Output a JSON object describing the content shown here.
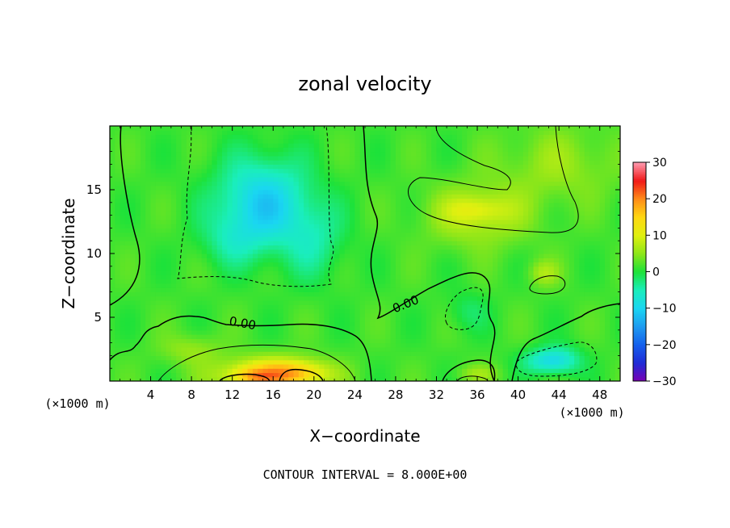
{
  "chart_data": {
    "type": "heatmap",
    "title": "zonal velocity",
    "xlabel": "X−coordinate",
    "ylabel": "Z−coordinate",
    "x_unit_left": "(×1000 m)",
    "x_unit_right": "(×1000 m)",
    "xlim": [
      0,
      50
    ],
    "ylim": [
      0,
      20
    ],
    "x_ticks": [
      4,
      8,
      12,
      16,
      20,
      24,
      28,
      32,
      36,
      40,
      44,
      48
    ],
    "y_ticks": [
      5,
      10,
      15
    ],
    "colorbar": {
      "range": [
        -30,
        30
      ],
      "ticks": [
        30,
        20,
        10,
        0,
        -10,
        -20,
        -30
      ],
      "tick_labels": [
        "30",
        "20",
        "10",
        "0",
        "−10",
        "−20",
        "−30"
      ],
      "stops": [
        {
          "v": -30,
          "c": "#7a00b4"
        },
        {
          "v": -25,
          "c": "#1f2bd6"
        },
        {
          "v": -20,
          "c": "#1560ec"
        },
        {
          "v": -15,
          "c": "#1e9bf0"
        },
        {
          "v": -10,
          "c": "#1ad6f2"
        },
        {
          "v": -5,
          "c": "#1aeebb"
        },
        {
          "v": 0,
          "c": "#1de23a"
        },
        {
          "v": 5,
          "c": "#8ee619"
        },
        {
          "v": 10,
          "c": "#e0f010"
        },
        {
          "v": 15,
          "c": "#ffd812"
        },
        {
          "v": 20,
          "c": "#ff8c18"
        },
        {
          "v": 25,
          "c": "#f01818"
        },
        {
          "v": 30,
          "c": "#ff9ab0"
        }
      ]
    },
    "contour_labels": [
      {
        "text": "0.00",
        "x": 13,
        "z": 4.5,
        "angle": 10
      },
      {
        "text": "0.00",
        "x": 29,
        "z": 6.0,
        "angle": -22
      }
    ],
    "features": [
      {
        "kind": "low",
        "x": 15,
        "z": 14,
        "value": -12,
        "sx": 4.5,
        "sz": 3.5
      },
      {
        "kind": "low",
        "x": 12,
        "z": 11,
        "value": -4,
        "sx": 3,
        "sz": 2
      },
      {
        "kind": "low",
        "x": 20,
        "z": 11,
        "value": -5,
        "sx": 3,
        "sz": 3
      },
      {
        "kind": "low",
        "x": 35,
        "z": 5.5,
        "value": -3,
        "sx": 2,
        "sz": 1.5
      },
      {
        "kind": "low",
        "x": 43,
        "z": 1.6,
        "value": -9,
        "sx": 2.5,
        "sz": 1
      },
      {
        "kind": "low",
        "x": 44.5,
        "z": 1.8,
        "value": -3,
        "sx": 2,
        "sz": 1.2
      },
      {
        "kind": "high",
        "x": 16,
        "z": 0.5,
        "value": 16,
        "sx": 5,
        "sz": 1.3
      },
      {
        "kind": "high",
        "x": 14,
        "z": 0.4,
        "value": 5,
        "sx": 2,
        "sz": 0.6
      },
      {
        "kind": "high",
        "x": 18.5,
        "z": 0.8,
        "value": 5,
        "sx": 2.5,
        "sz": 0.8
      },
      {
        "kind": "high",
        "x": 8,
        "z": 2.5,
        "value": 4,
        "sx": 3,
        "sz": 1.2
      },
      {
        "kind": "high",
        "x": 36,
        "z": 13,
        "value": 6,
        "sx": 5,
        "sz": 2.5
      },
      {
        "kind": "high",
        "x": 36,
        "z": 13.5,
        "value": 4,
        "sx": 3,
        "sz": 1
      },
      {
        "kind": "high",
        "x": 44,
        "z": 17,
        "value": 4,
        "sx": 6,
        "sz": 3
      },
      {
        "kind": "high",
        "x": 42.5,
        "z": 8.5,
        "value": 5,
        "sx": 1.5,
        "sz": 1
      },
      {
        "kind": "high",
        "x": 36,
        "z": 0.6,
        "value": 4,
        "sx": 2,
        "sz": 0.7
      }
    ],
    "footer": "CONTOUR INTERVAL = 8.000E+00",
    "grid": false,
    "legend": "colorbar right"
  }
}
